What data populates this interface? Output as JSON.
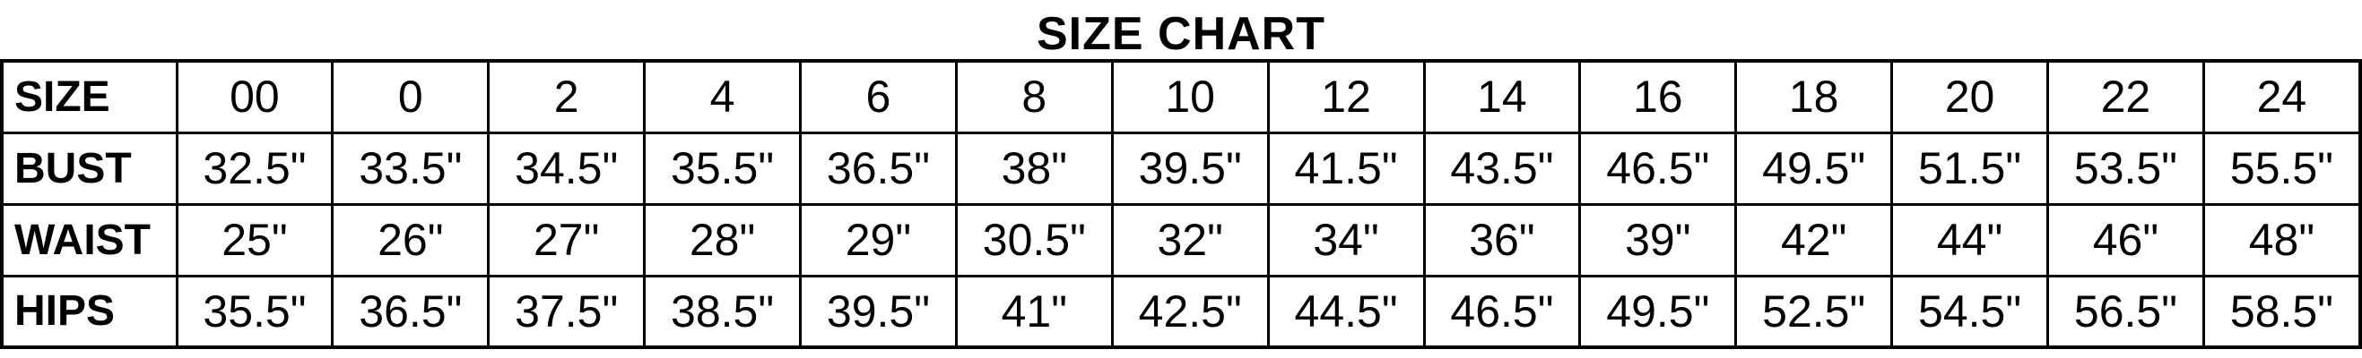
{
  "title": "SIZE CHART",
  "colors": {
    "border": "#000000",
    "text": "#000000",
    "background": "#ffffff"
  },
  "table": {
    "rows": [
      {
        "header": "SIZE",
        "values": [
          "00",
          "0",
          "2",
          "4",
          "6",
          "8",
          "10",
          "12",
          "14",
          "16",
          "18",
          "20",
          "22",
          "24"
        ]
      },
      {
        "header": "BUST",
        "values": [
          "32.5\"",
          "33.5\"",
          "34.5\"",
          "35.5\"",
          "36.5\"",
          "38\"",
          "39.5\"",
          "41.5\"",
          "43.5\"",
          "46.5\"",
          "49.5\"",
          "51.5\"",
          "53.5\"",
          "55.5\""
        ]
      },
      {
        "header": "WAIST",
        "values": [
          "25\"",
          "26\"",
          "27\"",
          "28\"",
          "29\"",
          "30.5\"",
          "32\"",
          "34\"",
          "36\"",
          "39\"",
          "42\"",
          "44\"",
          "46\"",
          "48\""
        ]
      },
      {
        "header": "HIPS",
        "values": [
          "35.5\"",
          "36.5\"",
          "37.5\"",
          "38.5\"",
          "39.5\"",
          "41\"",
          "42.5\"",
          "44.5\"",
          "46.5\"",
          "49.5\"",
          "52.5\"",
          "54.5\"",
          "56.5\"",
          "58.5\""
        ]
      }
    ]
  },
  "chart_data": {
    "type": "table",
    "title": "SIZE CHART",
    "row_headers": [
      "SIZE",
      "BUST",
      "WAIST",
      "HIPS"
    ],
    "sizes": [
      "00",
      "0",
      "2",
      "4",
      "6",
      "8",
      "10",
      "12",
      "14",
      "16",
      "18",
      "20",
      "22",
      "24"
    ],
    "bust_inches": [
      32.5,
      33.5,
      34.5,
      35.5,
      36.5,
      38,
      39.5,
      41.5,
      43.5,
      46.5,
      49.5,
      51.5,
      53.5,
      55.5
    ],
    "waist_inches": [
      25,
      26,
      27,
      28,
      29,
      30.5,
      32,
      34,
      36,
      39,
      42,
      44,
      46,
      48
    ],
    "hips_inches": [
      35.5,
      36.5,
      37.5,
      38.5,
      39.5,
      41,
      42.5,
      44.5,
      46.5,
      49.5,
      52.5,
      54.5,
      56.5,
      58.5
    ],
    "units": "inches"
  }
}
